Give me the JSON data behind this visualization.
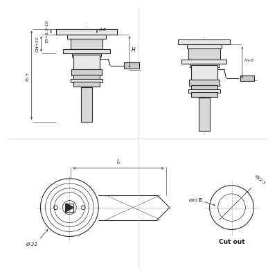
{
  "bg_color": "#ffffff",
  "line_color": "#2a2a2a",
  "dim_color": "#2a2a2a",
  "text_color": "#1a1a1a",
  "fig_width": 4.0,
  "fig_height": 4.0,
  "dpi": 100,
  "annotations": {
    "ts_label": "TS=1.5-18",
    "gh_label": "GH=31",
    "h_label": "H",
    "h6_label": "H+6",
    "dim_70_5": "70.5",
    "dim_3_5": "3.5",
    "dim_L": "L",
    "dim_32": "Ø 32",
    "dim_201": "Ø20.1",
    "dim_225": "Ø22.5",
    "cutout_label": "Cut out"
  }
}
